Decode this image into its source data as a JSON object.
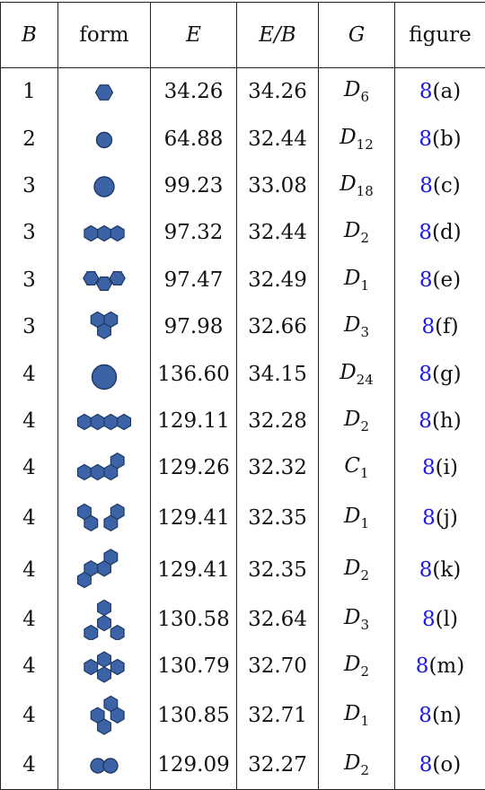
{
  "columns": [
    "B",
    "form",
    "E",
    "E/B",
    "G",
    "figure"
  ],
  "rows": [
    {
      "B": "1",
      "form": "hex1",
      "E": "34.26",
      "EB": "34.26",
      "G": "D",
      "Gsub": "6",
      "fig_num": "8",
      "fig_tag": "(a)"
    },
    {
      "B": "2",
      "form": "disc-s",
      "E": "64.88",
      "EB": "32.44",
      "G": "D",
      "Gsub": "12",
      "fig_num": "8",
      "fig_tag": "(b)"
    },
    {
      "B": "3",
      "form": "disc-m",
      "E": "99.23",
      "EB": "33.08",
      "G": "D",
      "Gsub": "18",
      "fig_num": "8",
      "fig_tag": "(c)"
    },
    {
      "B": "3",
      "form": "hex3-line",
      "E": "97.32",
      "EB": "32.44",
      "G": "D",
      "Gsub": "2",
      "fig_num": "8",
      "fig_tag": "(d)"
    },
    {
      "B": "3",
      "form": "hex3-bent",
      "E": "97.47",
      "EB": "32.49",
      "G": "D",
      "Gsub": "1",
      "fig_num": "8",
      "fig_tag": "(e)"
    },
    {
      "B": "3",
      "form": "hex3-tri",
      "E": "97.98",
      "EB": "32.66",
      "G": "D",
      "Gsub": "3",
      "fig_num": "8",
      "fig_tag": "(f)"
    },
    {
      "B": "4",
      "form": "disc-l",
      "E": "136.60",
      "EB": "34.15",
      "G": "D",
      "Gsub": "24",
      "fig_num": "8",
      "fig_tag": "(g)"
    },
    {
      "B": "4",
      "form": "hex4-line",
      "E": "129.11",
      "EB": "32.28",
      "G": "D",
      "Gsub": "2",
      "fig_num": "8",
      "fig_tag": "(h)"
    },
    {
      "B": "4",
      "form": "hex4-hook",
      "E": "129.26",
      "EB": "32.32",
      "G": "C",
      "Gsub": "1",
      "fig_num": "8",
      "fig_tag": "(i)"
    },
    {
      "B": "4",
      "form": "hex4-u",
      "E": "129.41",
      "EB": "32.35",
      "G": "D",
      "Gsub": "1",
      "fig_num": "8",
      "fig_tag": "(j)"
    },
    {
      "B": "4",
      "form": "hex4-zig",
      "E": "129.41",
      "EB": "32.35",
      "G": "D",
      "Gsub": "2",
      "fig_num": "8",
      "fig_tag": "(k)"
    },
    {
      "B": "4",
      "form": "hex4-star",
      "E": "130.58",
      "EB": "32.64",
      "G": "D",
      "Gsub": "3",
      "fig_num": "8",
      "fig_tag": "(l)"
    },
    {
      "B": "4",
      "form": "hex4-dia",
      "E": "130.79",
      "EB": "32.70",
      "G": "D",
      "Gsub": "2",
      "fig_num": "8",
      "fig_tag": "(m)"
    },
    {
      "B": "4",
      "form": "hex4-y",
      "E": "130.85",
      "EB": "32.71",
      "G": "D",
      "Gsub": "1",
      "fig_num": "8",
      "fig_tag": "(n)"
    },
    {
      "B": "4",
      "form": "disc-pair",
      "E": "129.09",
      "EB": "32.27",
      "G": "D",
      "Gsub": "2",
      "fig_num": "8",
      "fig_tag": "(o)"
    }
  ],
  "colors": {
    "shape_fill": "#3b63a6",
    "shape_stroke": "#1f3a66",
    "link": "#1a1ae6"
  }
}
